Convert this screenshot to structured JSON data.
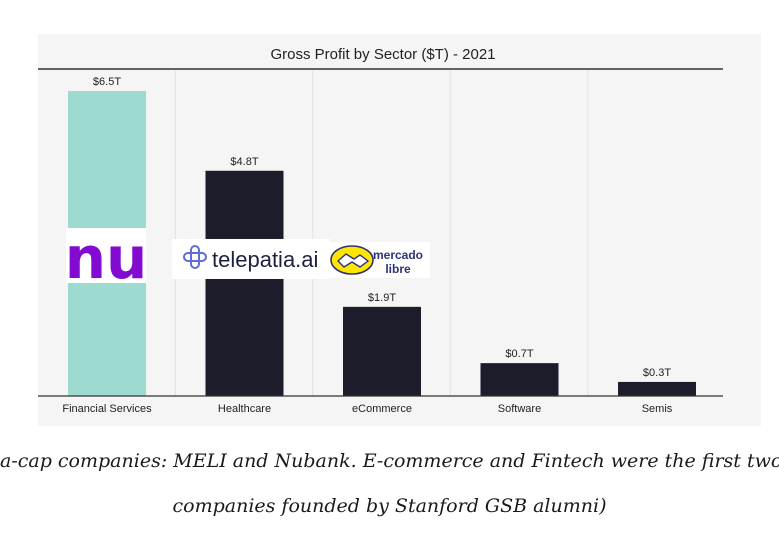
{
  "chart_data": {
    "type": "bar",
    "title": "Gross Profit by Sector ($T) - 2021",
    "categories": [
      "Financial Services",
      "Healthcare",
      "eCommerce",
      "Software",
      "Semis"
    ],
    "values": [
      6.5,
      4.8,
      1.9,
      0.7,
      0.3
    ],
    "data_labels": [
      "$6.5T",
      "$4.8T",
      "$1.9T",
      "$0.7T",
      "$0.3T"
    ],
    "ylim": [
      0,
      6.5
    ],
    "grid": "vertical lines only",
    "highlight_category": "Financial Services",
    "colors": {
      "highlight": "#9ddbd1",
      "bar": "#1c1c2a",
      "background": "#f5f5f5",
      "nubank_purple": "#820ad1",
      "mercado_yellow": "#ffe600",
      "mercado_blue": "#2d3277"
    }
  },
  "logos": {
    "nubank": "nu",
    "telepatia": "telepatia.ai",
    "mercado_libre": [
      "mercado",
      "libre"
    ]
  },
  "caption": {
    "line1": "a-cap companies: MELI and Nubank. E-commerce and Fintech were the first two mega ca",
    "line2": "companies founded by Stanford GSB alumni)"
  }
}
